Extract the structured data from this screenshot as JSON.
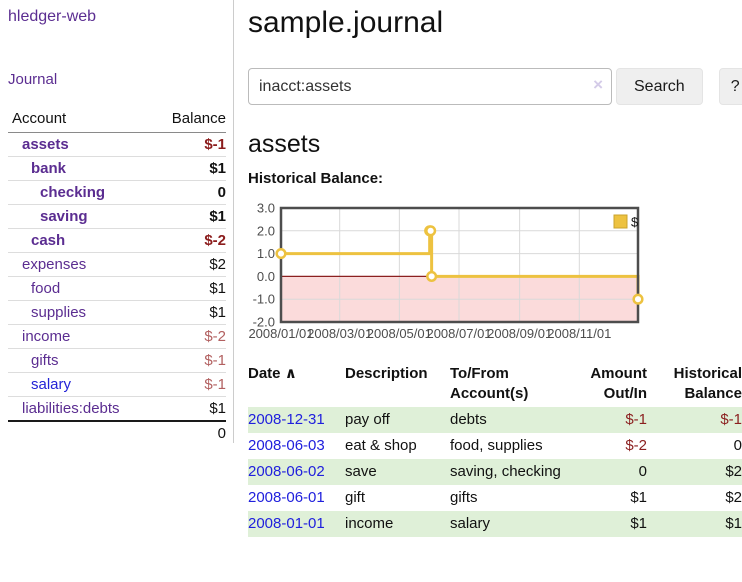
{
  "app": {
    "brand": "hledger-web"
  },
  "nav": {
    "journal": "Journal"
  },
  "sidebar": {
    "headers": [
      "Account",
      "Balance"
    ],
    "accounts": [
      {
        "name": "assets",
        "indent": 1,
        "bold": true,
        "balance": "$-1",
        "neg": "strong"
      },
      {
        "name": "bank",
        "indent": 2,
        "bold": true,
        "balance": "$1",
        "neg": null
      },
      {
        "name": "checking",
        "indent": 3,
        "bold": true,
        "balance": "0",
        "neg": null
      },
      {
        "name": "saving",
        "indent": 3,
        "bold": true,
        "balance": "$1",
        "neg": null
      },
      {
        "name": "cash",
        "indent": 2,
        "bold": true,
        "balance": "$-2",
        "neg": "strong"
      },
      {
        "name": "expenses",
        "indent": 1,
        "bold": false,
        "balance": "$2",
        "neg": null
      },
      {
        "name": "food",
        "indent": 2,
        "bold": false,
        "balance": "$1",
        "neg": null
      },
      {
        "name": "supplies",
        "indent": 2,
        "bold": false,
        "balance": "$1",
        "neg": null
      },
      {
        "name": "income",
        "indent": 1,
        "bold": false,
        "balance": "$-2",
        "neg": "muted"
      },
      {
        "name": "gifts",
        "indent": 2,
        "bold": false,
        "balance": "$-1",
        "neg": "muted"
      },
      {
        "name": "salary",
        "indent": 2,
        "bold": false,
        "balance": "$-1",
        "neg": "muted",
        "link_style": "blue"
      },
      {
        "name": "liabilities:debts",
        "indent": 1,
        "bold": false,
        "balance": "$1",
        "neg": null
      }
    ],
    "total": "0"
  },
  "main": {
    "title": "sample.journal",
    "account_heading": "assets",
    "chart_title": "Historical Balance:"
  },
  "search": {
    "value": "inacct:assets",
    "clear_icon": "×",
    "search_button": "Search",
    "help_button": "?"
  },
  "chart_data": {
    "type": "line",
    "step": true,
    "title": "Historical Balance:",
    "series": [
      {
        "name": "$",
        "color": "#EDC240",
        "points": [
          [
            "2008-01-01",
            1
          ],
          [
            "2008-06-01",
            2
          ],
          [
            "2008-06-02",
            2
          ],
          [
            "2008-06-03",
            0
          ],
          [
            "2008-12-31",
            -1
          ]
        ]
      }
    ],
    "x_range": [
      "2008-01-01",
      "2008-12-31"
    ],
    "ylim": [
      -2,
      3
    ],
    "y_ticks": [
      3.0,
      2.0,
      1.0,
      0.0,
      -1.0,
      -2.0
    ],
    "x_ticks": [
      "2008/01/01",
      "2008/03/01",
      "2008/05/01",
      "2008/07/01",
      "2008/09/01",
      "2008/11/01"
    ],
    "grid": true,
    "legend_position": "top-right",
    "negative_region_fill": "#fbdbdb",
    "zero_line_color": "#8b2020",
    "grid_color": "#d9d9d9",
    "border_color": "#4d4d4d",
    "tick_label_color": "#4d4d4d"
  },
  "register": {
    "headers": [
      "Date",
      "Description",
      "To/From Account(s)",
      "Amount Out/In",
      "Historical Balance"
    ],
    "sort_icon": "∧",
    "rows": [
      {
        "date": "2008-12-31",
        "description": "pay off",
        "accounts": "debts",
        "amount": "$-1",
        "amount_neg": true,
        "balance": "$-1",
        "balance_neg": true,
        "striped": true
      },
      {
        "date": "2008-06-03",
        "description": "eat & shop",
        "accounts": "food, supplies",
        "amount": "$-2",
        "amount_neg": true,
        "balance": "0",
        "balance_neg": false,
        "striped": false
      },
      {
        "date": "2008-06-02",
        "description": "save",
        "accounts": "saving, checking",
        "amount": "0",
        "amount_neg": false,
        "balance": "$2",
        "balance_neg": false,
        "striped": true
      },
      {
        "date": "2008-06-01",
        "description": "gift",
        "accounts": "gifts",
        "amount": "$1",
        "amount_neg": false,
        "balance": "$2",
        "balance_neg": false,
        "striped": false
      },
      {
        "date": "2008-01-01",
        "description": "income",
        "accounts": "salary",
        "amount": "$1",
        "amount_neg": false,
        "balance": "$1",
        "balance_neg": false,
        "striped": true
      }
    ]
  },
  "colors": {
    "link_purple": "#5b2d91",
    "link_blue": "#2020dd",
    "negative_strong": "#8b1c1c",
    "negative_muted": "#b26060",
    "row_stripe_green": "#dff0d8",
    "series_gold": "#EDC240"
  }
}
